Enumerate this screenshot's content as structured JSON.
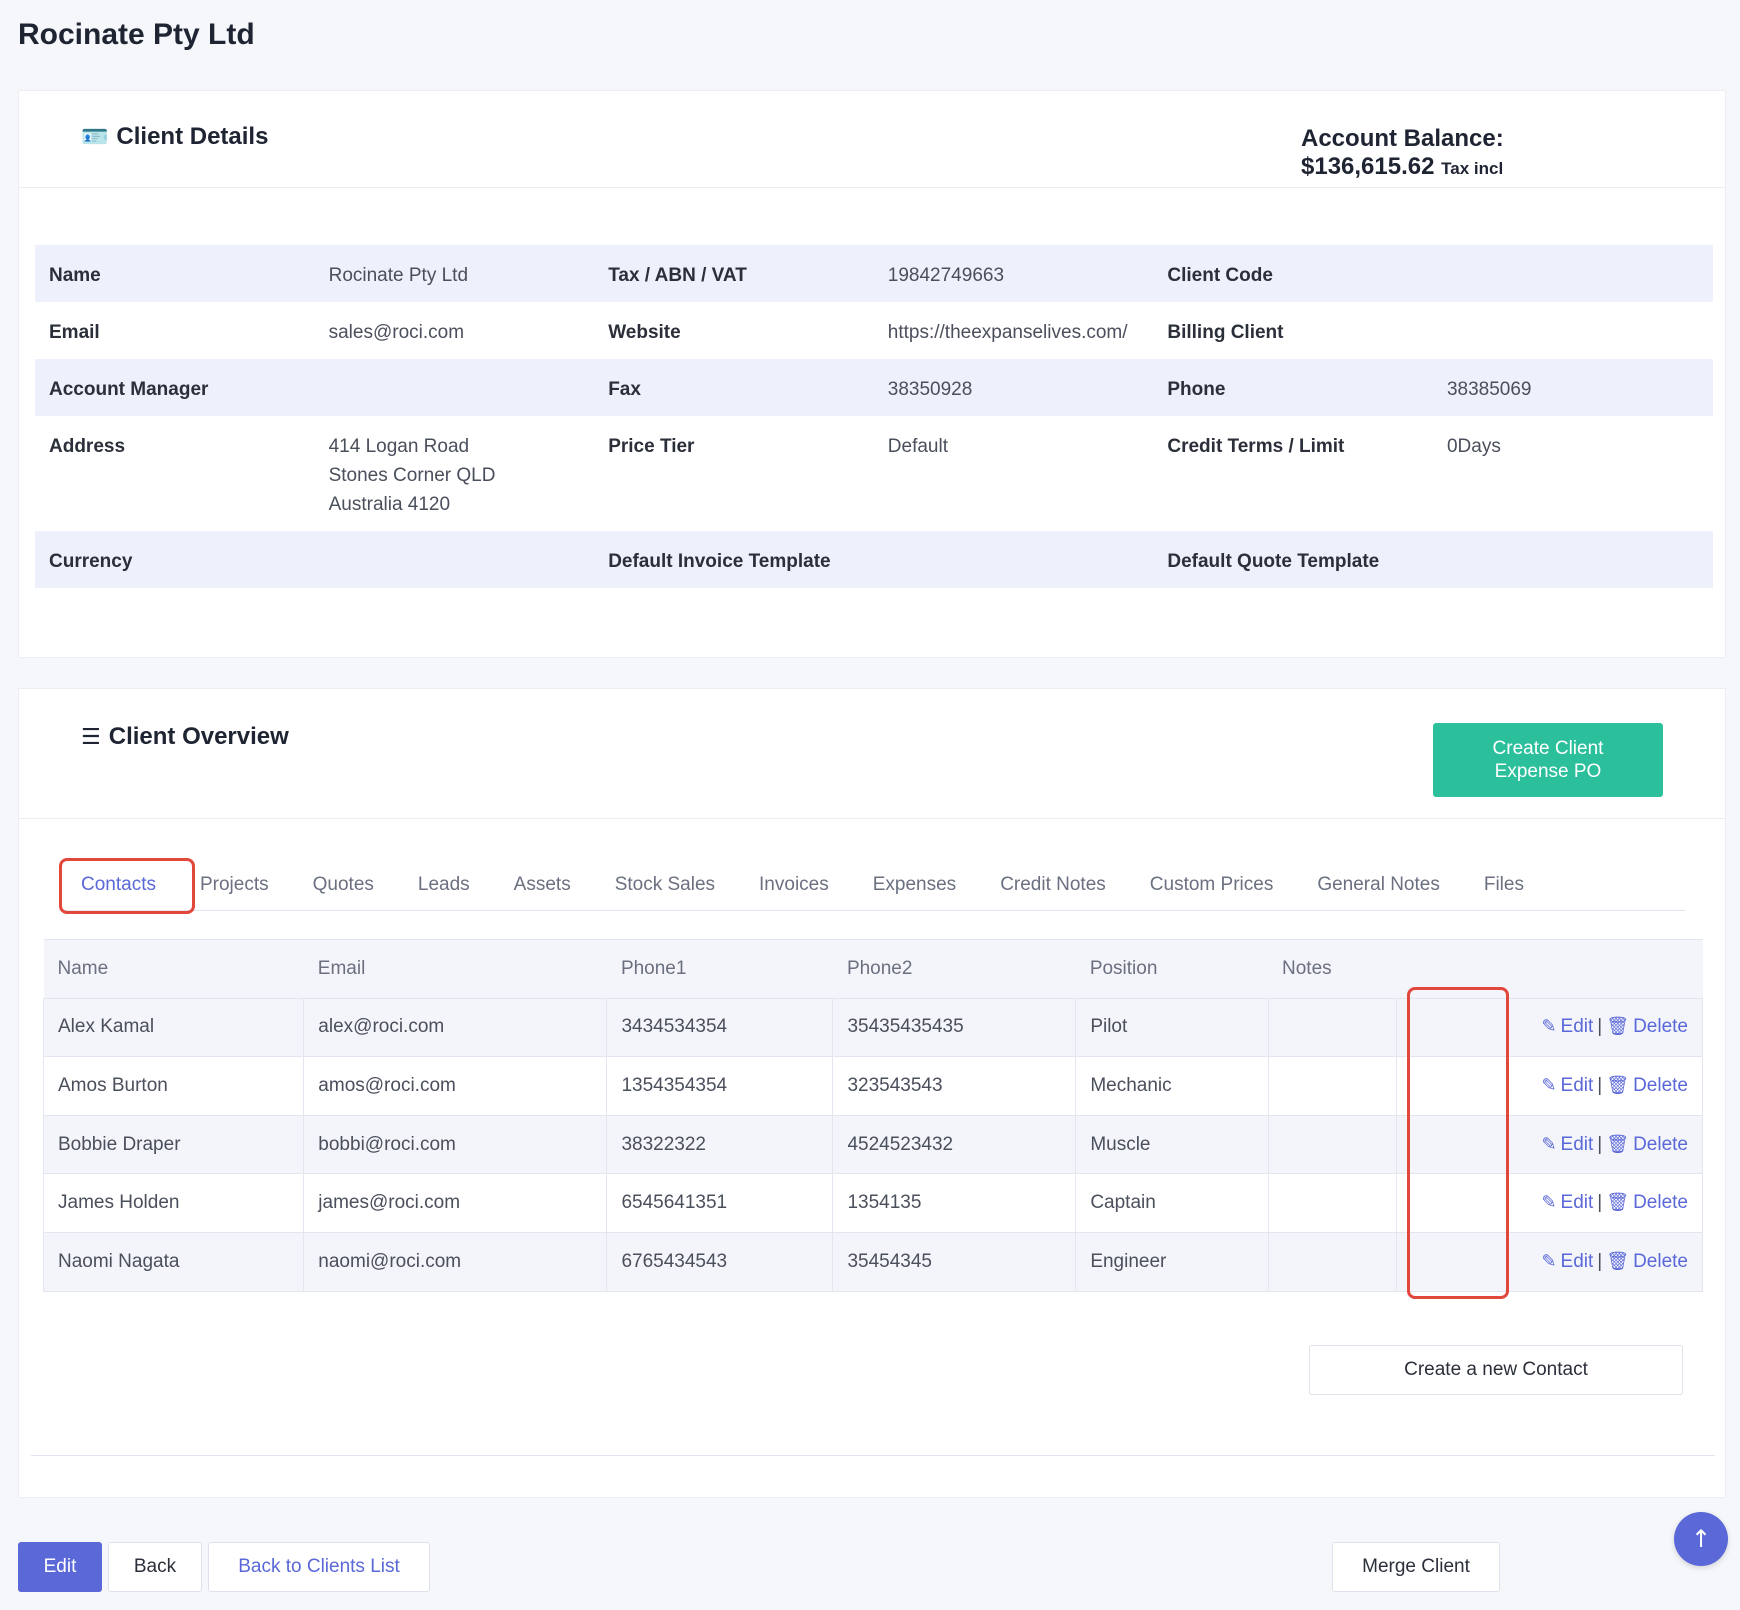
{
  "page": {
    "title": "Rocinate Pty Ltd"
  },
  "client_details": {
    "title": "Client Details",
    "balance_label": "Account Balance:",
    "balance_value": "$136,615.62",
    "balance_tax": "Tax incl",
    "rows": [
      {
        "c1_label": "Name",
        "c1_value": "Rocinate Pty Ltd",
        "c2_label": "Tax / ABN / VAT",
        "c2_value": "19842749663",
        "c3_label": "Client Code",
        "c3_value": ""
      },
      {
        "c1_label": "Email",
        "c1_value": "sales@roci.com",
        "c2_label": "Website",
        "c2_value": "https://theexpanselives.com/",
        "c3_label": "Billing Client",
        "c3_value": ""
      },
      {
        "c1_label": "Account Manager",
        "c1_value": "",
        "c2_label": "Fax",
        "c2_value": "38350928",
        "c3_label": "Phone",
        "c3_value": "38385069"
      },
      {
        "c1_label": "Address",
        "c1_value_lines": [
          "414 Logan Road",
          "Stones Corner QLD",
          "Australia 4120"
        ],
        "c2_label": "Price Tier",
        "c2_value": "Default",
        "c3_label": "Credit Terms / Limit",
        "c3_value": "0Days"
      },
      {
        "c1_label": "Currency",
        "c1_value": "",
        "c2_label": "Default Invoice Template",
        "c2_value": "",
        "c3_label": "Default Quote Template",
        "c3_value": ""
      }
    ]
  },
  "client_overview": {
    "title": "Client Overview",
    "create_po_line1": "Create Client",
    "create_po_line2": "Expense PO",
    "tabs": [
      "Contacts",
      "Projects",
      "Quotes",
      "Leads",
      "Assets",
      "Stock Sales",
      "Invoices",
      "Expenses",
      "Credit Notes",
      "Custom Prices",
      "General Notes",
      "Files"
    ],
    "active_tab": "Contacts",
    "table": {
      "headers": [
        "Name",
        "Email",
        "Phone1",
        "Phone2",
        "Position",
        "Notes",
        ""
      ],
      "rows": [
        {
          "name": "Alex Kamal",
          "email": "alex@roci.com",
          "phone1": "3434534354",
          "phone2": "35435435435",
          "position": "Pilot",
          "notes": ""
        },
        {
          "name": "Amos Burton",
          "email": "amos@roci.com",
          "phone1": "1354354354",
          "phone2": "323543543",
          "position": "Mechanic",
          "notes": ""
        },
        {
          "name": "Bobbie Draper",
          "email": "bobbi@roci.com",
          "phone1": "38322322",
          "phone2": "4524523432",
          "position": "Muscle",
          "notes": ""
        },
        {
          "name": "James Holden",
          "email": "james@roci.com",
          "phone1": "6545641351",
          "phone2": "1354135",
          "position": "Captain",
          "notes": ""
        },
        {
          "name": "Naomi Nagata",
          "email": "naomi@roci.com",
          "phone1": "6765434543",
          "phone2": "35454345",
          "position": "Engineer",
          "notes": ""
        }
      ],
      "edit_label": "Edit",
      "delete_label": "Delete",
      "separator": "|"
    },
    "new_contact_label": "Create a new Contact"
  },
  "footer": {
    "edit": "Edit",
    "back": "Back",
    "back_to_list": "Back to Clients List",
    "merge": "Merge Client"
  },
  "icons": {
    "client_details": "id-card-icon",
    "client_overview": "stack-icon",
    "edit": "edit-icon",
    "delete": "trash-icon",
    "scroll_top": "arrow-up-icon"
  },
  "colors": {
    "accent": "#5a68d8",
    "create_po": "#2bbf9c",
    "highlight": "#e2473c"
  }
}
